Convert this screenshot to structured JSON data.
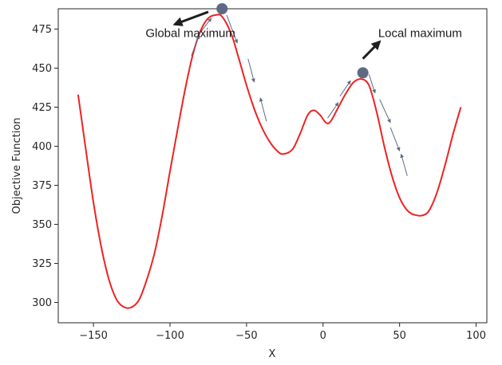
{
  "chart_data": {
    "type": "line",
    "xlabel": "X",
    "ylabel": "Objective Function",
    "xlim": [
      -173,
      107
    ],
    "ylim": [
      287,
      488
    ],
    "xticks": [
      -150,
      -100,
      -50,
      0,
      50,
      100
    ],
    "yticks": [
      300,
      325,
      350,
      375,
      400,
      425,
      450,
      475
    ],
    "grid": false,
    "series": [
      {
        "color": "#ee2222",
        "x": [
          -160,
          -155,
          -150,
          -145,
          -140,
          -135,
          -130,
          -125,
          -120,
          -115,
          -110,
          -105,
          -100,
          -95,
          -90,
          -85,
          -80,
          -75,
          -70,
          -66,
          -60,
          -55,
          -50,
          -45,
          -40,
          -35,
          -30,
          -26,
          -20,
          -15,
          -10,
          -6,
          -2,
          2,
          5,
          10,
          15,
          20,
          25,
          30,
          35,
          40,
          45,
          50,
          55,
          60,
          66,
          70,
          75,
          80,
          85,
          90
        ],
        "y": [
          433,
          398,
          364,
          336,
          315,
          302,
          297,
          297,
          302,
          315,
          332,
          356,
          384,
          411,
          437,
          459,
          474,
          482,
          484,
          483,
          472,
          456,
          439,
          424,
          412,
          403,
          397,
          395,
          398,
          408,
          420,
          423,
          420,
          415,
          416,
          425,
          434,
          441,
          443,
          439,
          422,
          400,
          381,
          367,
          359,
          356,
          356,
          360,
          372,
          389,
          408,
          425
        ]
      }
    ],
    "points": [
      {
        "x": -66,
        "y": 488,
        "color": "#5e6a84"
      },
      {
        "x": 26,
        "y": 447,
        "color": "#5e6a84"
      }
    ],
    "step_arrows": [
      {
        "x1": -86,
        "y1": 458,
        "x2": -81,
        "y2": 471
      },
      {
        "x1": -80,
        "y1": 473,
        "x2": -73,
        "y2": 482
      },
      {
        "x1": -63,
        "y1": 484,
        "x2": -56,
        "y2": 466
      },
      {
        "x1": -49,
        "y1": 456,
        "x2": -45,
        "y2": 441
      },
      {
        "x1": -37,
        "y1": 416,
        "x2": -41,
        "y2": 431
      },
      {
        "x1": 3,
        "y1": 418,
        "x2": 10,
        "y2": 428
      },
      {
        "x1": 11,
        "y1": 432,
        "x2": 18,
        "y2": 442
      },
      {
        "x1": 30,
        "y1": 446,
        "x2": 34,
        "y2": 434
      },
      {
        "x1": 37,
        "y1": 430,
        "x2": 44,
        "y2": 415
      },
      {
        "x1": 44,
        "y1": 412,
        "x2": 50,
        "y2": 397
      },
      {
        "x1": 55,
        "y1": 381,
        "x2": 51,
        "y2": 395
      }
    ],
    "annotations": [
      {
        "text": "Global maximum",
        "x": -116,
        "y": 470,
        "arrow": {
          "x1": -75,
          "y1": 486,
          "x2": -97,
          "y2": 478,
          "color": "#1f1f1f"
        }
      },
      {
        "text": "Local maximum",
        "x": 36,
        "y": 470,
        "arrow": {
          "x1": 26,
          "y1": 456,
          "x2": 37,
          "y2": 467,
          "color": "#1f1f1f"
        }
      }
    ]
  }
}
